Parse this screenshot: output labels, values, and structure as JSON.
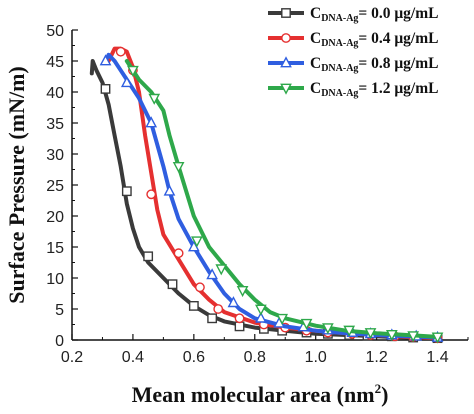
{
  "chart_data": {
    "type": "line",
    "xlabel": "Mean molecular area (nm",
    "xlabel_sup": "2",
    "xlabel_end": ")",
    "ylabel": "Surface Pressure (mN/m)",
    "xlim": [
      0.2,
      1.5
    ],
    "ylim": [
      0,
      50
    ],
    "xticks": [
      "0.2",
      "0.4",
      "0.6",
      "0.8",
      "1.0",
      "1.2",
      "1.4"
    ],
    "xtick_values": [
      0.2,
      0.4,
      0.6,
      0.8,
      1.0,
      1.2,
      1.4
    ],
    "yticks": [
      "0",
      "5",
      "10",
      "15",
      "20",
      "25",
      "30",
      "35",
      "40",
      "45",
      "50"
    ],
    "ytick_values": [
      0,
      5,
      10,
      15,
      20,
      25,
      30,
      35,
      40,
      45,
      50
    ],
    "grid": false,
    "legend_position": "top-right",
    "series": [
      {
        "name_main": "C",
        "name_sub": "DNA-Ag",
        "name_rest": "= 0.0 μg/mL",
        "color": "#3a3a3a",
        "marker": "square",
        "points": [
          [
            0.265,
            43
          ],
          [
            0.268,
            45
          ],
          [
            0.272,
            44.5
          ],
          [
            0.28,
            43.5
          ],
          [
            0.3,
            41.5
          ],
          [
            0.32,
            38
          ],
          [
            0.34,
            33
          ],
          [
            0.36,
            28
          ],
          [
            0.38,
            22
          ],
          [
            0.4,
            18
          ],
          [
            0.42,
            15
          ],
          [
            0.45,
            12.5
          ],
          [
            0.5,
            10
          ],
          [
            0.55,
            7.5
          ],
          [
            0.6,
            5.5
          ],
          [
            0.65,
            4
          ],
          [
            0.7,
            3
          ],
          [
            0.8,
            2
          ],
          [
            0.9,
            1.5
          ],
          [
            1.0,
            1
          ],
          [
            1.1,
            0.8
          ],
          [
            1.2,
            0.6
          ],
          [
            1.3,
            0.4
          ],
          [
            1.4,
            0.3
          ]
        ],
        "markers": [
          [
            0.31,
            40.5
          ],
          [
            0.38,
            24
          ],
          [
            0.45,
            13.5
          ],
          [
            0.53,
            9
          ],
          [
            0.6,
            5.5
          ],
          [
            0.66,
            3.5
          ],
          [
            0.75,
            2.2
          ],
          [
            0.83,
            1.8
          ],
          [
            0.89,
            1.5
          ],
          [
            0.97,
            1.2
          ],
          [
            1.04,
            1
          ],
          [
            1.11,
            0.8
          ],
          [
            1.17,
            0.7
          ],
          [
            1.25,
            0.6
          ],
          [
            1.32,
            0.4
          ],
          [
            1.4,
            0.3
          ]
        ]
      },
      {
        "name_main": "C",
        "name_sub": "DNA-Ag",
        "name_rest": "= 0.4 μg/mL",
        "color": "#e53030",
        "marker": "circle",
        "points": [
          [
            0.32,
            45
          ],
          [
            0.34,
            47
          ],
          [
            0.36,
            47
          ],
          [
            0.38,
            46.5
          ],
          [
            0.4,
            44
          ],
          [
            0.42,
            40
          ],
          [
            0.44,
            33
          ],
          [
            0.46,
            27
          ],
          [
            0.48,
            21
          ],
          [
            0.5,
            17
          ],
          [
            0.55,
            13
          ],
          [
            0.6,
            9
          ],
          [
            0.65,
            6.5
          ],
          [
            0.7,
            4.5
          ],
          [
            0.8,
            2.8
          ],
          [
            0.9,
            2
          ],
          [
            1.0,
            1.5
          ],
          [
            1.1,
            1.1
          ],
          [
            1.2,
            0.8
          ],
          [
            1.3,
            0.5
          ],
          [
            1.4,
            0.3
          ]
        ],
        "markers": [
          [
            0.36,
            46.5
          ],
          [
            0.4,
            43.5
          ],
          [
            0.46,
            23.5
          ],
          [
            0.55,
            14
          ],
          [
            0.62,
            8.5
          ],
          [
            0.68,
            5
          ],
          [
            0.75,
            3.5
          ],
          [
            0.83,
            2.5
          ],
          [
            0.9,
            2
          ],
          [
            0.97,
            1.5
          ],
          [
            1.04,
            1.2
          ],
          [
            1.12,
            1
          ],
          [
            1.18,
            0.8
          ],
          [
            1.26,
            0.6
          ],
          [
            1.32,
            0.5
          ],
          [
            1.4,
            0.3
          ]
        ]
      },
      {
        "name_main": "C",
        "name_sub": "DNA-Ag",
        "name_rest": "= 0.8 μg/mL",
        "color": "#2f5ee0",
        "marker": "triangle",
        "points": [
          [
            0.31,
            45
          ],
          [
            0.32,
            46
          ],
          [
            0.34,
            45
          ],
          [
            0.36,
            43.5
          ],
          [
            0.38,
            42
          ],
          [
            0.42,
            39
          ],
          [
            0.46,
            35
          ],
          [
            0.5,
            28
          ],
          [
            0.52,
            24
          ],
          [
            0.55,
            19.5
          ],
          [
            0.6,
            15
          ],
          [
            0.65,
            11
          ],
          [
            0.7,
            7.5
          ],
          [
            0.75,
            5
          ],
          [
            0.8,
            3.5
          ],
          [
            0.9,
            2.2
          ],
          [
            1.0,
            1.5
          ],
          [
            1.1,
            1.1
          ],
          [
            1.2,
            0.8
          ],
          [
            1.3,
            0.6
          ],
          [
            1.4,
            0.4
          ]
        ],
        "markers": [
          [
            0.31,
            45
          ],
          [
            0.38,
            41.5
          ],
          [
            0.46,
            35
          ],
          [
            0.52,
            24
          ],
          [
            0.6,
            15
          ],
          [
            0.66,
            10.5
          ],
          [
            0.73,
            6
          ],
          [
            0.82,
            3.5
          ],
          [
            0.88,
            2.7
          ],
          [
            0.96,
            2.1
          ],
          [
            1.04,
            1.6
          ],
          [
            1.12,
            1.2
          ],
          [
            1.18,
            1
          ],
          [
            1.25,
            0.8
          ],
          [
            1.33,
            0.6
          ],
          [
            1.4,
            0.4
          ]
        ]
      },
      {
        "name_main": "C",
        "name_sub": "DNA-Ag",
        "name_rest": "= 1.2 μg/mL",
        "color": "#2ea84a",
        "marker": "triangle-down",
        "points": [
          [
            0.38,
            45
          ],
          [
            0.42,
            42
          ],
          [
            0.46,
            40
          ],
          [
            0.48,
            38.5
          ],
          [
            0.5,
            37
          ],
          [
            0.52,
            33
          ],
          [
            0.55,
            28
          ],
          [
            0.6,
            20
          ],
          [
            0.65,
            15
          ],
          [
            0.7,
            12
          ],
          [
            0.75,
            9
          ],
          [
            0.8,
            6.5
          ],
          [
            0.85,
            4.5
          ],
          [
            0.9,
            3.5
          ],
          [
            1.0,
            2.3
          ],
          [
            1.1,
            1.5
          ],
          [
            1.2,
            1.1
          ],
          [
            1.3,
            0.8
          ],
          [
            1.4,
            0.5
          ]
        ],
        "markers": [
          [
            0.4,
            43.5
          ],
          [
            0.47,
            39
          ],
          [
            0.55,
            28
          ],
          [
            0.61,
            16
          ],
          [
            0.69,
            11.5
          ],
          [
            0.76,
            8
          ],
          [
            0.82,
            5
          ],
          [
            0.89,
            3.5
          ],
          [
            0.97,
            2.7
          ],
          [
            1.04,
            2
          ],
          [
            1.11,
            1.6
          ],
          [
            1.18,
            1.2
          ],
          [
            1.25,
            0.9
          ],
          [
            1.32,
            0.7
          ],
          [
            1.4,
            0.5
          ]
        ]
      }
    ]
  }
}
